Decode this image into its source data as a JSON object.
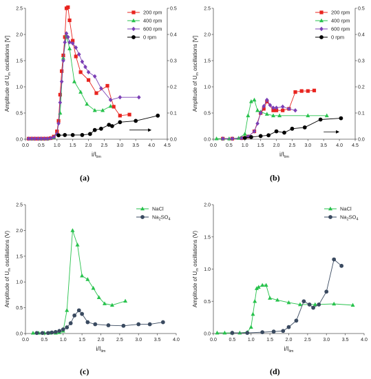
{
  "figure": {
    "panel_letters": [
      "(a)",
      "(b)",
      "(c)",
      "(d)"
    ]
  },
  "colors": {
    "red": "#e8241f",
    "green": "#27c24c",
    "purple": "#7b3fb5",
    "black": "#000000",
    "slate": "#3a4a60"
  },
  "chart_data": [
    {
      "type": "line",
      "panel": "(a)",
      "ylabel": "Amplitude of Uₘ oscillations (V)",
      "ylabel_parts": {
        "pre": "Amplitude of U",
        "sub": "m",
        "post": " oscillations [V]"
      },
      "xlabel_parts": {
        "pre": "i/I",
        "sub": "lim"
      },
      "xlim": [
        0,
        4.5
      ],
      "xticks": [
        0,
        0.5,
        1.0,
        1.5,
        2.0,
        2.5,
        3.0,
        3.5,
        4.0,
        4.5
      ],
      "xtick_labels": [
        "0.0",
        "0.5",
        "1.0",
        "1.5",
        "2.0",
        "2.5",
        "3.0",
        "3.5",
        "4.0",
        "4.5"
      ],
      "ylim": [
        0,
        2.5
      ],
      "yticks": [
        0,
        0.5,
        1.0,
        1.5,
        2.0,
        2.5
      ],
      "ytick_labels": [
        "0.0",
        "0.5",
        "1.0",
        "1.5",
        "2.0",
        "2.5"
      ],
      "y2lim": [
        0,
        0.5
      ],
      "y2ticks": [
        0,
        0.1,
        0.2,
        0.3,
        0.4,
        0.5
      ],
      "y2tick_labels": [
        "0.0",
        "0.1",
        "0.2",
        "0.3",
        "0.4",
        "0.5"
      ],
      "legend": "top-right",
      "arrow": {
        "x": [
          3.3,
          4.0
        ],
        "y": 0.035,
        "axis": "right"
      },
      "series": [
        {
          "name": "200 rpm",
          "color": "red",
          "marker": "square",
          "axis": "left",
          "x": [
            0.1,
            0.2,
            0.3,
            0.4,
            0.5,
            0.6,
            0.7,
            0.8,
            0.9,
            1.0,
            1.05,
            1.1,
            1.15,
            1.2,
            1.25,
            1.3,
            1.35,
            1.4,
            1.5,
            1.6,
            1.75,
            2.0,
            2.25,
            2.6,
            2.8,
            3.0,
            3.3
          ],
          "y": [
            0.01,
            0.01,
            0.01,
            0.01,
            0.01,
            0.01,
            0.01,
            0.02,
            0.05,
            0.15,
            0.35,
            0.85,
            1.3,
            1.6,
            1.95,
            2.5,
            2.52,
            2.27,
            1.88,
            1.58,
            1.28,
            1.13,
            0.88,
            1.02,
            0.62,
            0.45,
            0.47
          ]
        },
        {
          "name": "400 rpm",
          "color": "green",
          "marker": "triangle",
          "axis": "left",
          "x": [
            0.2,
            0.5,
            0.7,
            0.9,
            1.0,
            1.1,
            1.2,
            1.3,
            1.4,
            1.55,
            1.75,
            1.95,
            2.2,
            2.45,
            2.7
          ],
          "y": [
            0.01,
            0.01,
            0.01,
            0.03,
            0.1,
            0.5,
            1.55,
            1.98,
            1.73,
            1.1,
            0.9,
            0.67,
            0.55,
            0.55,
            0.63
          ]
        },
        {
          "name": "600 rpm",
          "color": "purple",
          "marker": "diamond",
          "axis": "left",
          "x": [
            0.1,
            0.2,
            0.3,
            0.4,
            0.5,
            0.6,
            0.7,
            0.8,
            0.9,
            1.0,
            1.05,
            1.1,
            1.15,
            1.2,
            1.25,
            1.3,
            1.35,
            1.4,
            1.5,
            1.6,
            1.7,
            1.8,
            1.9,
            2.0,
            2.2,
            2.4,
            2.7,
            3.0,
            3.6
          ],
          "y": [
            0.01,
            0.01,
            0.01,
            0.01,
            0.01,
            0.01,
            0.01,
            0.02,
            0.04,
            0.1,
            0.3,
            0.7,
            1.1,
            1.5,
            1.85,
            2.02,
            1.95,
            1.85,
            1.83,
            1.75,
            1.62,
            1.48,
            1.38,
            1.28,
            1.2,
            0.97,
            0.75,
            0.8,
            0.8
          ]
        },
        {
          "name": "0 rpm",
          "color": "black",
          "marker": "circle",
          "axis": "right",
          "x": [
            1.05,
            1.25,
            1.5,
            1.8,
            2.05,
            2.2,
            2.4,
            2.65,
            2.75,
            3.0,
            3.5,
            4.2
          ],
          "y": [
            0.015,
            0.016,
            0.016,
            0.016,
            0.02,
            0.035,
            0.04,
            0.055,
            0.05,
            0.065,
            0.07,
            0.09
          ]
        }
      ]
    },
    {
      "type": "line",
      "panel": "(b)",
      "ylabel_parts": {
        "pre": "Amplitude of U",
        "sub": "m",
        "post": " oscillations [V]"
      },
      "xlabel_parts": {
        "pre": "i/I",
        "sub": "lim"
      },
      "xlim": [
        0,
        4.5
      ],
      "xticks": [
        0,
        0.5,
        1.0,
        1.5,
        2.0,
        2.5,
        3.0,
        3.5,
        4.0,
        4.5
      ],
      "xtick_labels": [
        "0.0",
        "0.5",
        "1.0",
        "1.5",
        "2.0",
        "2.5",
        "3.0",
        "3.5",
        "4.0",
        "4.5"
      ],
      "ylim": [
        0,
        2.5
      ],
      "yticks": [
        0,
        0.5,
        1.0,
        1.5,
        2.0,
        2.5
      ],
      "ytick_labels": [
        "0.0",
        "0.5",
        "1.0",
        "1.5",
        "2.0",
        "2.5"
      ],
      "y2lim": [
        0,
        0.5
      ],
      "y2ticks": [
        0,
        0.1,
        0.2,
        0.3,
        0.4,
        0.5
      ],
      "y2tick_labels": [
        "0.0",
        "0.1",
        "0.2",
        "0.3",
        "0.4",
        "0.5"
      ],
      "legend": "top-right",
      "arrow": {
        "x": [
          3.5,
          4.0
        ],
        "y": 0.028,
        "axis": "right"
      },
      "series": [
        {
          "name": "200 rpm",
          "color": "red",
          "marker": "square",
          "axis": "left",
          "x": [
            0.3,
            0.6,
            0.9,
            1.1,
            1.3,
            1.5,
            1.6,
            1.7,
            1.9,
            2.0,
            2.2,
            2.4,
            2.6,
            2.8,
            3.0,
            3.2
          ],
          "y": [
            0.01,
            0.01,
            0.02,
            0.05,
            0.15,
            0.5,
            0.58,
            0.72,
            0.55,
            0.55,
            0.55,
            0.58,
            0.9,
            0.92,
            0.92,
            0.93
          ]
        },
        {
          "name": "400 rpm",
          "color": "green",
          "marker": "triangle",
          "axis": "left",
          "x": [
            0.1,
            0.3,
            0.5,
            0.8,
            1.0,
            1.1,
            1.2,
            1.3,
            1.4,
            1.5,
            1.7,
            1.9,
            2.1,
            3.0,
            3.6
          ],
          "y": [
            0.01,
            0.01,
            0.01,
            0.02,
            0.1,
            0.45,
            0.72,
            0.75,
            0.55,
            0.52,
            0.48,
            0.45,
            0.45,
            0.45,
            0.45
          ]
        },
        {
          "name": "600 rpm",
          "color": "purple",
          "marker": "diamond",
          "axis": "left",
          "x": [
            0.3,
            0.6,
            0.9,
            1.1,
            1.3,
            1.4,
            1.5,
            1.6,
            1.7,
            1.8,
            1.9,
            2.0,
            2.2,
            2.4,
            2.6
          ],
          "y": [
            0.01,
            0.01,
            0.02,
            0.05,
            0.15,
            0.3,
            0.5,
            0.63,
            0.75,
            0.65,
            0.6,
            0.6,
            0.62,
            0.58,
            0.55
          ]
        },
        {
          "name": "0 rpm",
          "color": "black",
          "marker": "circle",
          "axis": "right",
          "x": [
            1.0,
            1.2,
            1.5,
            1.75,
            2.0,
            2.25,
            2.5,
            2.9,
            3.4,
            4.05
          ],
          "y": [
            0.005,
            0.008,
            0.012,
            0.015,
            0.03,
            0.025,
            0.04,
            0.045,
            0.075,
            0.08
          ]
        }
      ]
    },
    {
      "type": "line",
      "panel": "(c)",
      "ylabel_parts": {
        "pre": "Amplitude of U",
        "sub": "m",
        "post": " oscillations (V)"
      },
      "xlabel_parts": {
        "pre": "i/I",
        "sub": "lim"
      },
      "xlim": [
        0,
        4.0
      ],
      "xticks": [
        0,
        0.5,
        1.0,
        1.5,
        2.0,
        2.5,
        3.0,
        3.5,
        4.0
      ],
      "xtick_labels": [
        "0.0",
        "0.5",
        "1.0",
        "1.5",
        "2.0",
        "2.5",
        "3.0",
        "3.5",
        "4.0"
      ],
      "ylim": [
        0,
        2.5
      ],
      "yticks": [
        0,
        0.5,
        1.0,
        1.5,
        2.0,
        2.5
      ],
      "ytick_labels": [
        "0.0",
        "0.5",
        "1.0",
        "1.5",
        "2.0",
        "2.5"
      ],
      "legend": "top-right",
      "series": [
        {
          "name": "NaCl",
          "color": "green",
          "marker": "triangle",
          "axis": "left",
          "x": [
            0.2,
            0.35,
            0.5,
            0.65,
            0.8,
            0.9,
            1.0,
            1.1,
            1.25,
            1.38,
            1.5,
            1.65,
            1.8,
            1.95,
            2.1,
            2.3,
            2.65
          ],
          "y": [
            0.01,
            0.01,
            0.01,
            0.01,
            0.01,
            0.02,
            0.05,
            0.45,
            2.0,
            1.72,
            1.12,
            1.05,
            0.88,
            0.7,
            0.58,
            0.55,
            0.63
          ]
        },
        {
          "name": "Na₂SO₄",
          "name_parts": {
            "pre": "Na",
            "sub1": "2",
            "mid": "SO",
            "sub2": "4"
          },
          "color": "slate",
          "marker": "circle",
          "axis": "left",
          "x": [
            0.3,
            0.45,
            0.6,
            0.7,
            0.8,
            0.9,
            1.0,
            1.1,
            1.2,
            1.3,
            1.42,
            1.5,
            1.65,
            1.85,
            2.2,
            2.6,
            3.0,
            3.3,
            3.65
          ],
          "y": [
            0.01,
            0.01,
            0.01,
            0.02,
            0.03,
            0.05,
            0.08,
            0.12,
            0.2,
            0.35,
            0.45,
            0.38,
            0.22,
            0.18,
            0.16,
            0.15,
            0.18,
            0.18,
            0.22
          ]
        }
      ]
    },
    {
      "type": "line",
      "panel": "(d)",
      "ylabel_parts": {
        "pre": "Amplitude of U",
        "sub": "m",
        "post": " oscillations (V)"
      },
      "xlabel_parts": {
        "pre": "i/I",
        "sub": "lim"
      },
      "xlim": [
        0,
        4.0
      ],
      "xticks": [
        0,
        0.5,
        1.0,
        1.5,
        2.0,
        2.5,
        3.0,
        3.5,
        4.0
      ],
      "xtick_labels": [
        "0.0",
        "0.5",
        "1.0",
        "1.5",
        "2.0",
        "2.5",
        "3.0",
        "3.5",
        "4.0"
      ],
      "ylim": [
        0,
        2.0
      ],
      "yticks": [
        0,
        0.5,
        1.0,
        1.5,
        2.0
      ],
      "ytick_labels": [
        "0.0",
        "0.5",
        "1.0",
        "1.5",
        "2.0"
      ],
      "legend": "top-right",
      "series": [
        {
          "name": "NaCl",
          "color": "green",
          "marker": "triangle",
          "axis": "left",
          "x": [
            0.1,
            0.3,
            0.5,
            0.7,
            0.9,
            1.0,
            1.05,
            1.1,
            1.15,
            1.2,
            1.3,
            1.4,
            1.5,
            1.7,
            2.0,
            2.3,
            2.7,
            3.2,
            3.7
          ],
          "y": [
            0.01,
            0.01,
            0.01,
            0.01,
            0.02,
            0.1,
            0.3,
            0.5,
            0.7,
            0.72,
            0.75,
            0.75,
            0.55,
            0.52,
            0.48,
            0.45,
            0.45,
            0.46,
            0.44
          ]
        },
        {
          "name": "Na₂SO₄",
          "name_parts": {
            "pre": "Na",
            "sub1": "2",
            "mid": "SO",
            "sub2": "4"
          },
          "color": "slate",
          "marker": "circle",
          "axis": "left",
          "x": [
            0.5,
            0.9,
            1.3,
            1.6,
            1.85,
            2.0,
            2.2,
            2.4,
            2.55,
            2.65,
            2.8,
            3.0,
            3.2,
            3.4
          ],
          "y": [
            0.01,
            0.01,
            0.02,
            0.03,
            0.04,
            0.1,
            0.2,
            0.5,
            0.45,
            0.4,
            0.45,
            0.65,
            1.15,
            1.05
          ]
        }
      ]
    }
  ]
}
